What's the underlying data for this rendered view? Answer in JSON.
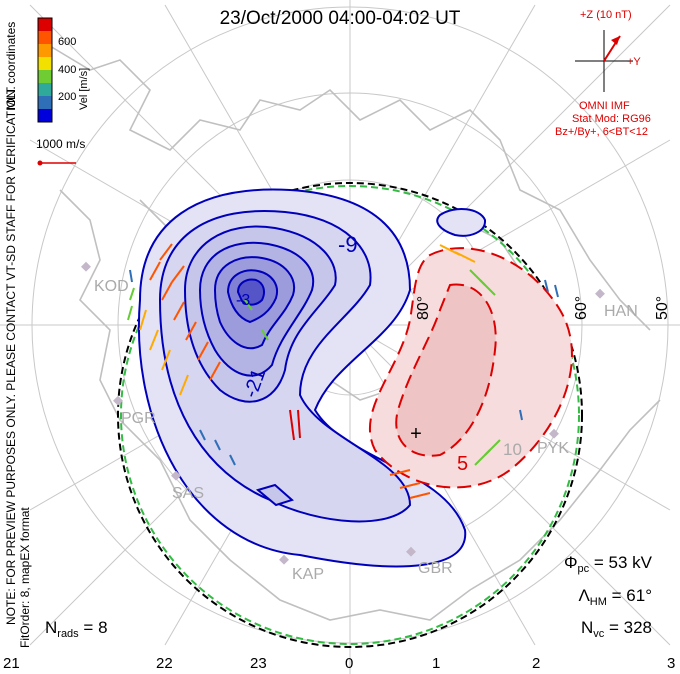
{
  "title": "23/Oct/2000 04:00-04:02 UT",
  "colorbar": {
    "title": "Vel [m/s]",
    "ticks": [
      "200",
      "400",
      "600"
    ],
    "colors": [
      "#0000dd",
      "#2f6fb8",
      "#2faa9a",
      "#6fcc33",
      "#f2e000",
      "#ff9900",
      "#ff5500",
      "#dd0000"
    ]
  },
  "coords_label": "MLT coordinates",
  "scale_vector_label": "1000 m/s",
  "imf": {
    "z_label": "+Z (10 nT)",
    "y_label": "+Y",
    "source": "OMNI IMF",
    "model": "Stat Mod: RG96",
    "condition": "Bz+/By+, 6<BT<12"
  },
  "preview_note": "NOTE: FOR PREVIEW PURPOSES ONLY. PLEASE CONTACT VT-SD STAFF FOR VERIFICATION.",
  "fit_order": "FitOrder: 8, mapEX format",
  "stats": {
    "phi_pc": "= 53 kV",
    "lambda_hm": "= 61°",
    "n_vc": "= 328",
    "n_rads": "= 8"
  },
  "stats_symbols": {
    "phi": "Φ",
    "phi_sub": "pc",
    "lambda": "Λ",
    "lambda_sub": "HM",
    "n": "N",
    "nvc_sub": "vc",
    "nrads_sub": "rads"
  },
  "mlt_labels": [
    "21",
    "22",
    "23",
    "0",
    "1",
    "2",
    "3"
  ],
  "latitude_labels": [
    "80°",
    "60°",
    "50°"
  ],
  "contour_labels": [
    "-9",
    "-21",
    "-3",
    "5",
    "10"
  ],
  "radar_labels": [
    "KOD",
    "HAN",
    "PGR",
    "PYK",
    "SAS",
    "KAP",
    "GBR"
  ],
  "map_colors": {
    "negative": "#0000bb",
    "positive": "#dd0000",
    "boundary": "#11aa33",
    "land": "#c0c0c0"
  }
}
